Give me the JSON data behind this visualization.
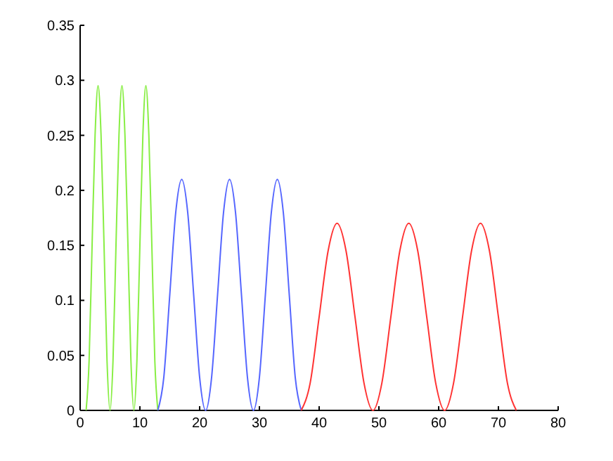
{
  "chart_data": {
    "type": "line",
    "xlim": [
      0,
      80
    ],
    "xticks": [
      0,
      10,
      20,
      30,
      40,
      50,
      60,
      70,
      80
    ],
    "ylim": [
      0,
      0.35
    ],
    "yticks": [
      0,
      0.05,
      0.1,
      0.15,
      0.2,
      0.25,
      0.3,
      0.35
    ],
    "grid": false,
    "marker": "none",
    "line_style": "solid",
    "series": [
      {
        "color": "#88ee44",
        "x": [
          1,
          1.5,
          2,
          2.5,
          3,
          3.5,
          4,
          4.5,
          5,
          5.5,
          6,
          6.5,
          7,
          7.5,
          8,
          8.5,
          9,
          9.5,
          10,
          10.5,
          11,
          11.5,
          12,
          12.5,
          13
        ],
        "values": [
          0,
          0.045,
          0.15,
          0.25,
          0.295,
          0.25,
          0.15,
          0.045,
          0,
          0.045,
          0.15,
          0.25,
          0.295,
          0.25,
          0.15,
          0.045,
          0,
          0.045,
          0.15,
          0.25,
          0.295,
          0.25,
          0.15,
          0.045,
          0
        ]
      },
      {
        "color": "#5566ff",
        "x": [
          13,
          14,
          15,
          16,
          17,
          18,
          19,
          20,
          21,
          22,
          23,
          24,
          25,
          26,
          27,
          28,
          29,
          30,
          31,
          32,
          33,
          34,
          35,
          36,
          37
        ],
        "values": [
          0,
          0.03,
          0.105,
          0.18,
          0.21,
          0.18,
          0.105,
          0.03,
          0,
          0.03,
          0.105,
          0.18,
          0.21,
          0.18,
          0.105,
          0.03,
          0,
          0.03,
          0.105,
          0.18,
          0.21,
          0.18,
          0.105,
          0.03,
          0
        ]
      },
      {
        "color": "#ff3333",
        "x": [
          37,
          38.5,
          40,
          41.5,
          43,
          44.5,
          46,
          47.5,
          49,
          50.5,
          52,
          53.5,
          55,
          56.5,
          58,
          59.5,
          61,
          62.5,
          64,
          65.5,
          67,
          68.5,
          70,
          71.5,
          73
        ],
        "values": [
          0,
          0.025,
          0.085,
          0.145,
          0.17,
          0.145,
          0.085,
          0.025,
          0,
          0.025,
          0.085,
          0.145,
          0.17,
          0.145,
          0.085,
          0.025,
          0,
          0.025,
          0.085,
          0.145,
          0.17,
          0.145,
          0.085,
          0.025,
          0
        ]
      }
    ]
  }
}
